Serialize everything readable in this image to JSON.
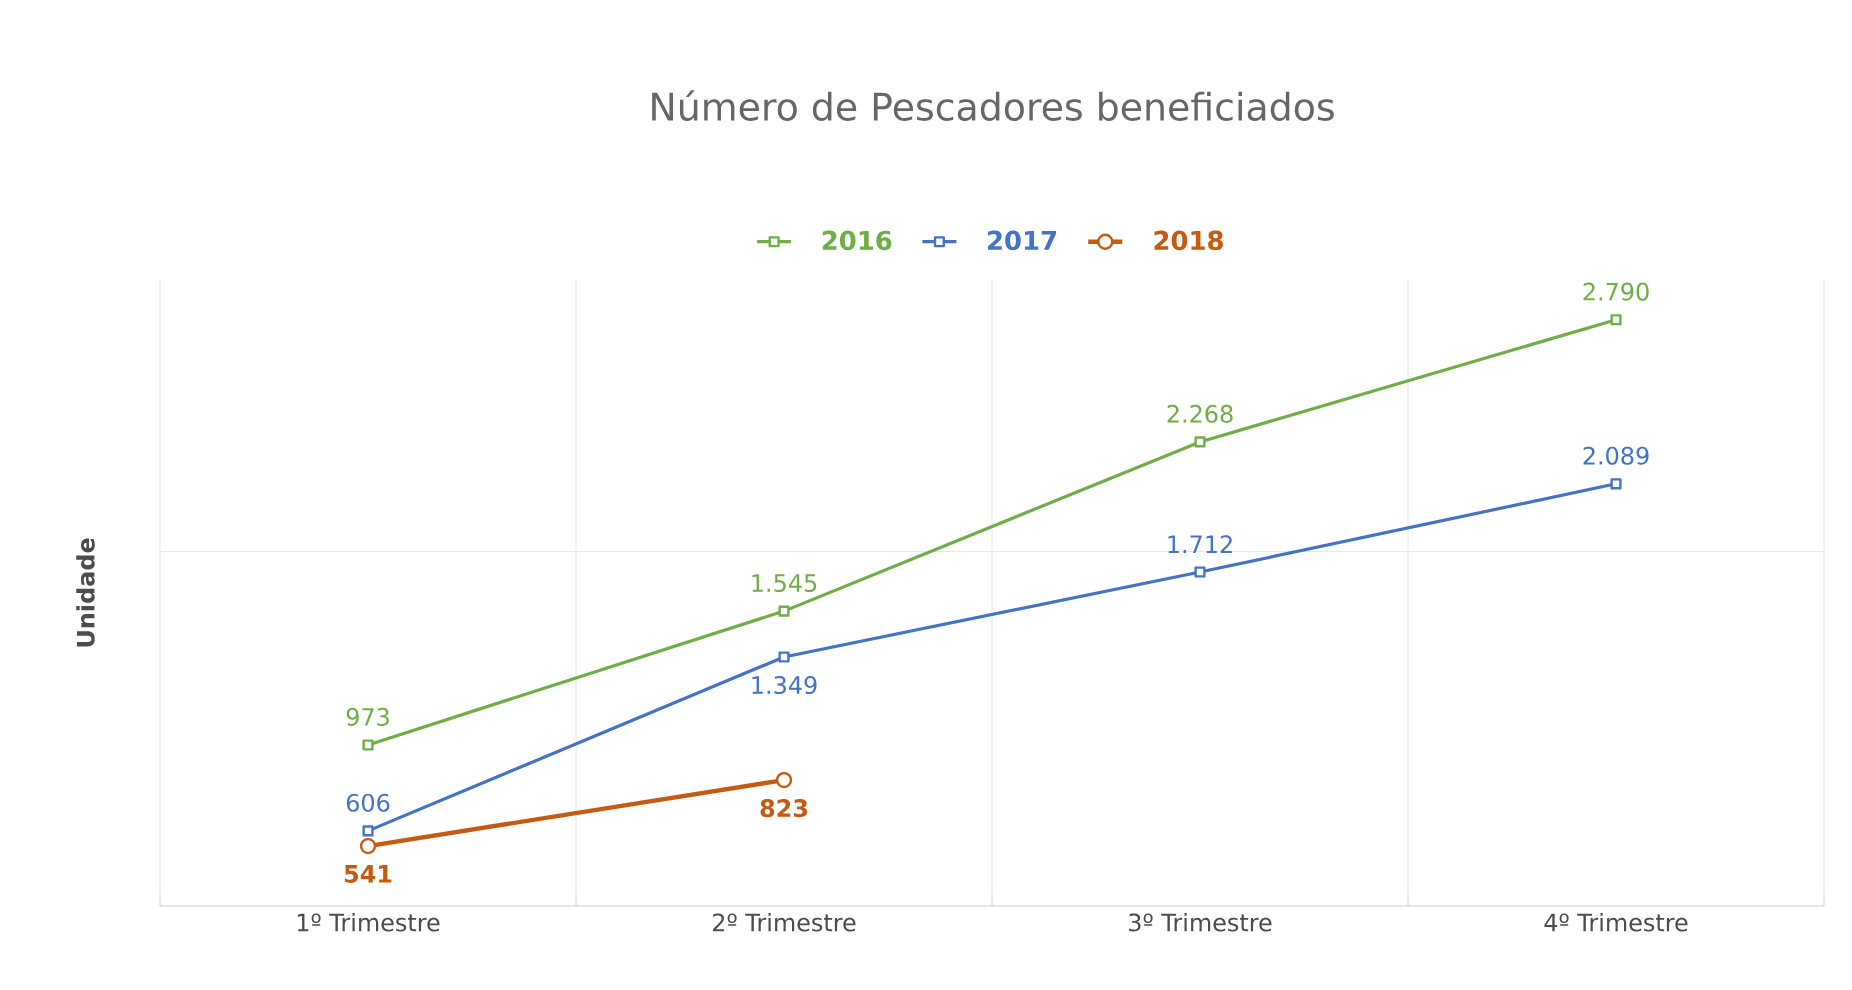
{
  "chart_data": {
    "type": "line",
    "title": "Número de Pescadores beneficiados",
    "ylabel": "Unidade",
    "categories": [
      "1º Trimestre",
      "2º Trimestre",
      "3º Trimestre",
      "4º Trimestre"
    ],
    "series": [
      {
        "name": "2016",
        "color": "#70ad47",
        "marker": "square",
        "values": [
          973,
          1545,
          2268,
          2790
        ],
        "value_labels": [
          "973",
          "1.545",
          "2.268",
          "2.790"
        ]
      },
      {
        "name": "2017",
        "color": "#4472c4",
        "marker": "square",
        "values": [
          606,
          1349,
          1712,
          2089
        ],
        "value_labels": [
          "606",
          "1.349",
          "1.712",
          "2.089"
        ]
      },
      {
        "name": "2018",
        "color": "#c55a11",
        "marker": "circle",
        "values": [
          541,
          823,
          null,
          null
        ],
        "value_labels": [
          "541",
          "823",
          null,
          null
        ]
      }
    ],
    "ylim": [
      285,
      2960
    ],
    "yticks": [
      {
        "value": 1800,
        "label": null
      }
    ],
    "tick_labels": "x",
    "grid": true,
    "legend": "top",
    "line_style": "solid"
  }
}
